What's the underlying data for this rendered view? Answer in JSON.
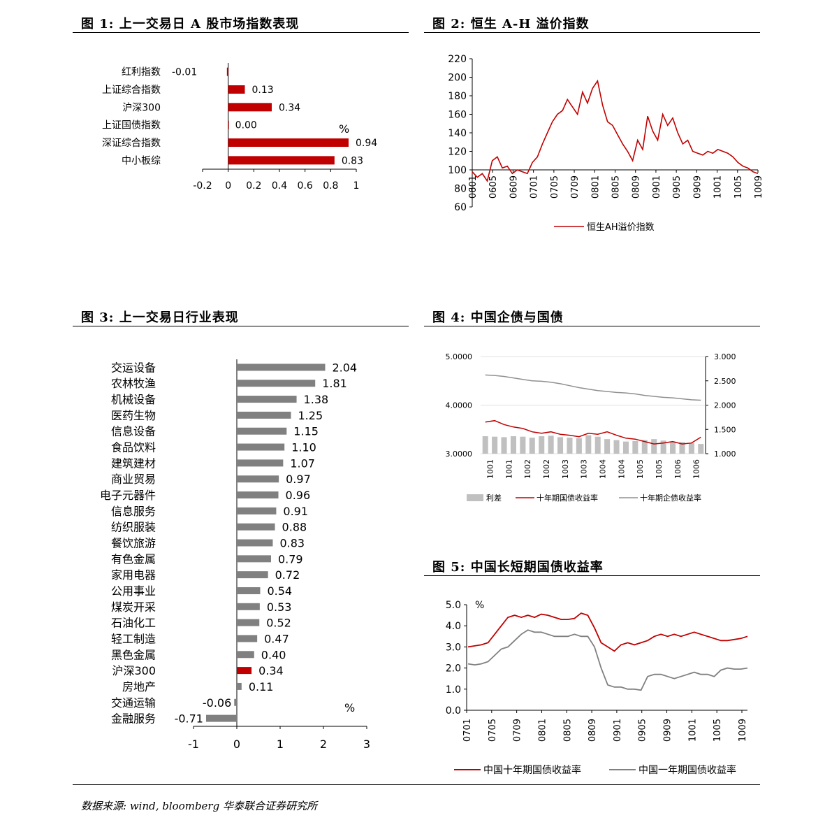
{
  "charts": {
    "fig1": {
      "title": "图 1: 上一交易日 A 股市场指数表现",
      "unit": "%",
      "chart_data": {
        "type": "bar",
        "orientation": "horizontal",
        "categories": [
          "红利指数",
          "上证综合指数",
          "沪深300",
          "上证国债指数",
          "深证综合指数",
          "中小板综"
        ],
        "values": [
          -0.01,
          0.13,
          0.34,
          0.0,
          0.94,
          0.83
        ],
        "value_labels": [
          "-0.01",
          "0.13",
          "0.34",
          "0.00",
          "0.94",
          "0.83"
        ],
        "xlim": [
          -0.2,
          1
        ],
        "xticks": [
          "-0.2",
          "0",
          "0.2",
          "0.4",
          "0.6",
          "0.8",
          "1"
        ],
        "color": "#c00000"
      }
    },
    "fig2": {
      "title": "图 2: 恒生 A-H 溢价指数",
      "chart_data": {
        "type": "line",
        "ylim": [
          60,
          220
        ],
        "yticks": [
          "60",
          "80",
          "100",
          "120",
          "140",
          "160",
          "180",
          "200",
          "220"
        ],
        "xticks": [
          "0601",
          "0605",
          "0609",
          "0701",
          "0705",
          "0709",
          "0801",
          "0805",
          "0809",
          "0901",
          "0905",
          "0909",
          "1001",
          "1005",
          "1009"
        ],
        "reference_line": 100,
        "series": [
          {
            "name": "恒生AH溢价指数",
            "color": "#c00000",
            "x": [
              "0601",
              "0602",
              "0603",
              "0604",
              "0605",
              "0606",
              "0607",
              "0608",
              "0609",
              "0610",
              "0611",
              "0612",
              "0701",
              "0702",
              "0703",
              "0704",
              "0705",
              "0706",
              "0707",
              "0708",
              "0709",
              "0710",
              "0711",
              "0712",
              "0801",
              "0802",
              "0803",
              "0804",
              "0805",
              "0806",
              "0807",
              "0808",
              "0809",
              "0810",
              "0811",
              "0812",
              "0901",
              "0902",
              "0903",
              "0904",
              "0905",
              "0906",
              "0907",
              "0908",
              "0909",
              "0910",
              "0911",
              "0912",
              "1001",
              "1002",
              "1003",
              "1004",
              "1005",
              "1006",
              "1007",
              "1008",
              "1009",
              "1010"
            ],
            "values": [
              98,
              92,
              96,
              88,
              110,
              114,
              102,
              104,
              96,
              100,
              98,
              96,
              108,
              114,
              128,
              140,
              152,
              160,
              164,
              176,
              168,
              160,
              184,
              172,
              188,
              196,
              170,
              152,
              148,
              138,
              128,
              120,
              110,
              132,
              122,
              158,
              142,
              132,
              160,
              148,
              156,
              140,
              128,
              132,
              120,
              118,
              116,
              120,
              118,
              122,
              120,
              118,
              114,
              108,
              104,
              102,
              98,
              96
            ]
          }
        ]
      }
    },
    "fig3": {
      "title": "图 3: 上一交易日行业表现",
      "unit": "%",
      "chart_data": {
        "type": "bar",
        "orientation": "horizontal",
        "categories": [
          "交运设备",
          "农林牧渔",
          "机械设备",
          "医药生物",
          "信息设备",
          "食品饮料",
          "建筑建材",
          "商业贸易",
          "电子元器件",
          "信息服务",
          "纺织服装",
          "餐饮旅游",
          "有色金属",
          "家用电器",
          "公用事业",
          "煤炭开采",
          "石油化工",
          "轻工制造",
          "黑色金属",
          "沪深300",
          "房地产",
          "交通运输",
          "金融服务"
        ],
        "values": [
          2.04,
          1.81,
          1.38,
          1.25,
          1.15,
          1.1,
          1.07,
          0.97,
          0.96,
          0.91,
          0.88,
          0.83,
          0.79,
          0.72,
          0.54,
          0.53,
          0.52,
          0.47,
          0.4,
          0.34,
          0.11,
          -0.06,
          -0.71
        ],
        "value_labels": [
          "2.04",
          "1.81",
          "1.38",
          "1.25",
          "1.15",
          "1.10",
          "1.07",
          "0.97",
          "0.96",
          "0.91",
          "0.88",
          "0.83",
          "0.79",
          "0.72",
          "0.54",
          "0.53",
          "0.52",
          "0.47",
          "0.40",
          "0.34",
          "0.11",
          "-0.06",
          "-0.71"
        ],
        "highlight": "沪深300",
        "xlim": [
          -1,
          3
        ],
        "xticks": [
          "-1",
          "0",
          "1",
          "2",
          "3"
        ],
        "color": "#808080",
        "highlight_color": "#c00000"
      }
    },
    "fig4": {
      "title": "图 4: 中国企债与国债",
      "chart_data": {
        "type": "line",
        "ylim_left": [
          3.0,
          5.0
        ],
        "yticks_left": [
          "3.0000",
          "4.0000",
          "5.0000"
        ],
        "ylim_right": [
          1.0,
          3.0
        ],
        "yticks_right": [
          "1.000",
          "1.500",
          "2.000",
          "2.500",
          "3.000"
        ],
        "xticks": [
          "1001",
          "1001",
          "1002",
          "1002",
          "1003",
          "1003",
          "1004",
          "1004",
          "1005",
          "1005",
          "1006",
          "1006"
        ],
        "series": [
          {
            "name": "利差",
            "type": "bar",
            "axis": "right",
            "color": "#c0c0c0",
            "values": [
              1.36,
              1.35,
              1.34,
              1.36,
              1.35,
              1.33,
              1.36,
              1.37,
              1.34,
              1.33,
              1.32,
              1.38,
              1.35,
              1.3,
              1.28,
              1.25,
              1.26,
              1.28,
              1.3,
              1.27,
              1.25,
              1.24,
              1.22,
              1.2
            ]
          },
          {
            "name": "十年期国债收益率",
            "type": "line",
            "axis": "left",
            "color": "#c00000",
            "values": [
              3.65,
              3.68,
              3.6,
              3.55,
              3.52,
              3.45,
              3.42,
              3.45,
              3.4,
              3.38,
              3.35,
              3.42,
              3.4,
              3.45,
              3.38,
              3.32,
              3.3,
              3.25,
              3.2,
              3.22,
              3.25,
              3.2,
              3.22,
              3.34
            ]
          },
          {
            "name": "十年期企债收益率",
            "type": "line",
            "axis": "right",
            "color": "#909090",
            "values": [
              2.62,
              2.61,
              2.59,
              2.56,
              2.53,
              2.5,
              2.49,
              2.47,
              2.44,
              2.4,
              2.36,
              2.33,
              2.3,
              2.28,
              2.26,
              2.25,
              2.23,
              2.2,
              2.18,
              2.16,
              2.15,
              2.13,
              2.11,
              2.1
            ]
          }
        ]
      }
    },
    "fig5": {
      "title": "图 5: 中国长短期国债收益率",
      "unit": "%",
      "chart_data": {
        "type": "line",
        "ylim": [
          0,
          5
        ],
        "yticks": [
          "0.0",
          "1.0",
          "2.0",
          "3.0",
          "4.0",
          "5.0"
        ],
        "xticks": [
          "0701",
          "0705",
          "0709",
          "0801",
          "0805",
          "0809",
          "0901",
          "0905",
          "0909",
          "1001",
          "1005",
          "1009"
        ],
        "series": [
          {
            "name": "中国十年期国债收益率",
            "color": "#c00000",
            "values": [
              3.0,
              3.05,
              3.1,
              3.2,
              3.6,
              4.0,
              4.4,
              4.5,
              4.4,
              4.5,
              4.4,
              4.55,
              4.5,
              4.4,
              4.3,
              4.3,
              4.35,
              4.6,
              4.5,
              3.9,
              3.2,
              3.0,
              2.8,
              3.1,
              3.2,
              3.1,
              3.2,
              3.3,
              3.5,
              3.6,
              3.5,
              3.6,
              3.5,
              3.6,
              3.7,
              3.6,
              3.5,
              3.4,
              3.3,
              3.3,
              3.35,
              3.4,
              3.5
            ]
          },
          {
            "name": "中国一年期国债收益率",
            "color": "#808080",
            "values": [
              2.2,
              2.15,
              2.2,
              2.3,
              2.6,
              2.9,
              3.0,
              3.3,
              3.6,
              3.8,
              3.7,
              3.7,
              3.6,
              3.5,
              3.5,
              3.5,
              3.6,
              3.5,
              3.5,
              3.0,
              2.0,
              1.2,
              1.1,
              1.1,
              1.0,
              1.0,
              0.95,
              1.6,
              1.7,
              1.7,
              1.6,
              1.5,
              1.6,
              1.7,
              1.8,
              1.7,
              1.7,
              1.6,
              1.9,
              2.0,
              1.95,
              1.95,
              2.0
            ]
          }
        ]
      }
    }
  },
  "footer": "数据来源: wind, bloomberg 华泰联合证券研究所"
}
